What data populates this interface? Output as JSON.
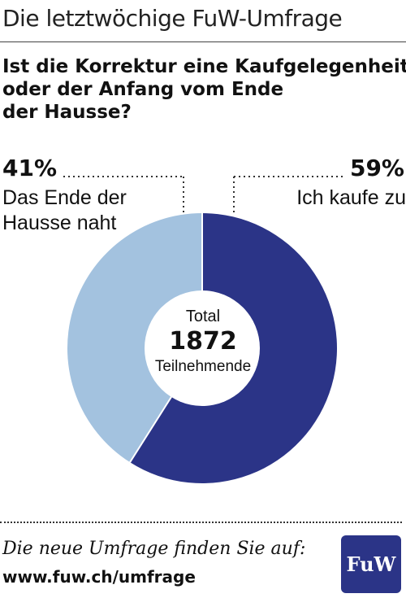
{
  "header": {
    "title": "Die letztwöchige FuW-Umfrage"
  },
  "question": {
    "lines": [
      "Ist die Korrektur eine Kaufgelegenheit",
      "oder der Anfang vom Ende",
      "der Hausse?"
    ]
  },
  "chart_data": {
    "type": "pie",
    "donut": true,
    "slices": [
      {
        "label": "Ich kaufe zu",
        "value": 59,
        "display": "59%",
        "color": "#2b3487"
      },
      {
        "label": "Das Ende der Hausse naht",
        "value": 41,
        "display": "41%",
        "color": "#a3c2df"
      }
    ],
    "center": {
      "line1": "Total",
      "count": "1872",
      "line2": "Teilnehmende"
    }
  },
  "footer": {
    "line1": "Die neue Umfrage finden Sie auf:",
    "url": "www.fuw.ch/umfrage"
  },
  "logo": {
    "text": "FuW",
    "color": "#2b3487"
  }
}
